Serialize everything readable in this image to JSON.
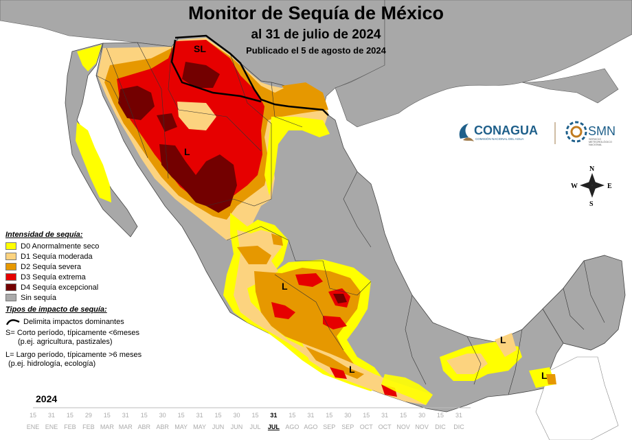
{
  "title": "Monitor de Sequía de México",
  "subtitle": "al 31 de julio de 2024",
  "published": "Publicado el 5 de agosto de 2024",
  "legend": {
    "intensity_header": "Intensidad de sequía:",
    "categories": [
      {
        "code": "D0",
        "label": "D0 Anormalmente seco",
        "color": "#ffff00"
      },
      {
        "code": "D1",
        "label": "D1 Sequía moderada",
        "color": "#fcd37f"
      },
      {
        "code": "D2",
        "label": "D2 Sequía severa",
        "color": "#e69800"
      },
      {
        "code": "D3",
        "label": "D3 Sequía extrema",
        "color": "#e60000"
      },
      {
        "code": "D4",
        "label": "D4 Sequía excepcional",
        "color": "#730000"
      },
      {
        "code": "none",
        "label": "Sin sequía",
        "color": "#aaaaaa"
      }
    ],
    "impact_header": "Tipos de impacto de sequía:",
    "impact_line": "Delimita impactos dominantes",
    "short_term_1": "S= Corto período, típicamente <6meses",
    "short_term_2": "(p.ej. agricultura, pastizales)",
    "long_term_1": "L= Largo período, típicamente >6 meses",
    "long_term_2": "(p.ej. hidrología, ecología)"
  },
  "map_labels": {
    "sl": "SL",
    "l": "L"
  },
  "compass": {
    "n": "N",
    "s": "S",
    "e": "E",
    "w": "W"
  },
  "logos": {
    "conagua": "CONAGUA",
    "conagua_sub": "COMISIÓN NACIONAL DEL AGUA",
    "smn": "SMN",
    "smn_sub1": "SERVICIO",
    "smn_sub2": "METEOROLÓGICO",
    "smn_sub3": "NACIONAL"
  },
  "timeline": {
    "year": "2024",
    "ticks": [
      {
        "d": "15",
        "m": "ENE"
      },
      {
        "d": "31",
        "m": "ENE"
      },
      {
        "d": "15",
        "m": "FEB"
      },
      {
        "d": "29",
        "m": "FEB"
      },
      {
        "d": "15",
        "m": "MAR"
      },
      {
        "d": "31",
        "m": "MAR"
      },
      {
        "d": "15",
        "m": "ABR"
      },
      {
        "d": "30",
        "m": "ABR"
      },
      {
        "d": "15",
        "m": "MAY"
      },
      {
        "d": "31",
        "m": "MAY"
      },
      {
        "d": "15",
        "m": "JUN"
      },
      {
        "d": "30",
        "m": "JUN"
      },
      {
        "d": "15",
        "m": "JUL"
      },
      {
        "d": "31",
        "m": "JUL",
        "current": true
      },
      {
        "d": "15",
        "m": "AGO"
      },
      {
        "d": "31",
        "m": "AGO"
      },
      {
        "d": "15",
        "m": "SEP"
      },
      {
        "d": "30",
        "m": "SEP"
      },
      {
        "d": "15",
        "m": "OCT"
      },
      {
        "d": "31",
        "m": "OCT"
      },
      {
        "d": "15",
        "m": "NOV"
      },
      {
        "d": "30",
        "m": "NOV"
      },
      {
        "d": "15",
        "m": "DIC"
      },
      {
        "d": "31",
        "m": "DIC"
      }
    ]
  }
}
